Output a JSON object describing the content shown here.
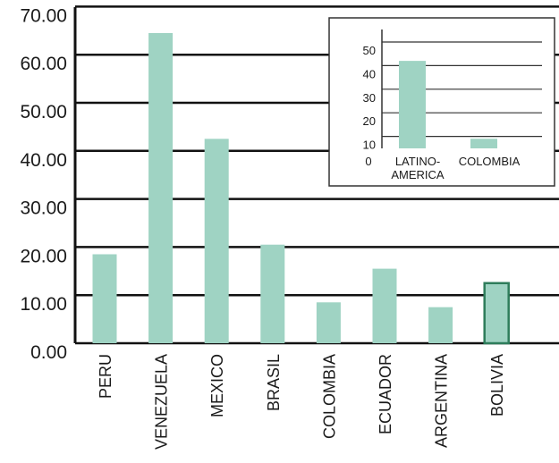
{
  "chart_data": [
    {
      "type": "bar",
      "categories": [
        "PERU",
        "VENEZUELA",
        "MEXICO",
        "BRASIL",
        "COLOMBIA",
        "ECUADOR",
        "ARGENTINA",
        "BOLIVIA"
      ],
      "values": [
        18.5,
        64.5,
        42.5,
        20.5,
        8.5,
        15.5,
        7.5,
        12.5
      ],
      "ylim": [
        0,
        70
      ],
      "yticks": [
        "0.00",
        "10.00",
        "20.00",
        "30.00",
        "40.00",
        "50.00",
        "60.00",
        "70.00"
      ],
      "grid": true,
      "bar_color": "#9fd3c3",
      "highlight": {
        "category": "BOLIVIA",
        "outline": "#2e7d5b"
      }
    },
    {
      "type": "bar",
      "inset": true,
      "categories": [
        [
          "LATINO-",
          "AMERICA"
        ],
        [
          "COLOMBIA"
        ]
      ],
      "values": [
        42,
        9
      ],
      "ylim": [
        0,
        50
      ],
      "yticks": [
        "0",
        "10",
        "20",
        "30",
        "40",
        "50"
      ],
      "grid": true,
      "bar_color": "#9fd3c3"
    }
  ]
}
